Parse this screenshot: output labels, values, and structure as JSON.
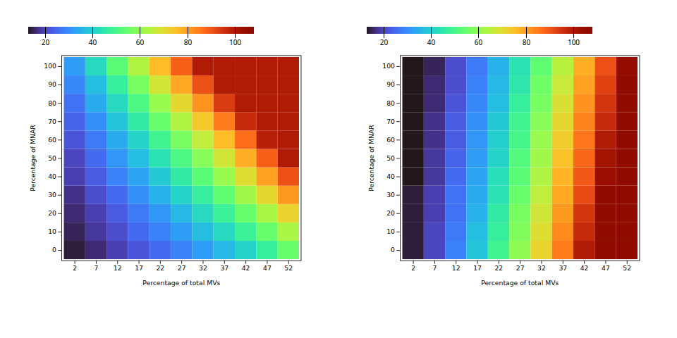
{
  "chart_data": [
    {
      "type": "heatmap",
      "x": [
        2,
        7,
        12,
        17,
        22,
        27,
        32,
        37,
        42,
        47,
        52
      ],
      "y": [
        0,
        10,
        20,
        30,
        40,
        50,
        60,
        70,
        80,
        90,
        100
      ],
      "xticks": [
        2,
        7,
        12,
        17,
        22,
        27,
        32,
        37,
        42,
        47,
        52
      ],
      "yticks": [
        0,
        10,
        20,
        30,
        40,
        50,
        60,
        70,
        80,
        90,
        100
      ],
      "xlabel": "Percentage of total MVs",
      "ylabel": "Percentage of MNAR",
      "colorbar_range": [
        13,
        108
      ],
      "colorbar_ticks": [
        20,
        40,
        60,
        80,
        100
      ],
      "values": [
        [
          14,
          16,
          19,
          22,
          25,
          28,
          32,
          36,
          41,
          47,
          55
        ],
        [
          15,
          18,
          21,
          25,
          28,
          32,
          37,
          42,
          48,
          55,
          63
        ],
        [
          16,
          19,
          23,
          27,
          31,
          36,
          42,
          48,
          55,
          63,
          72
        ],
        [
          17,
          21,
          25,
          30,
          35,
          41,
          47,
          54,
          62,
          71,
          81
        ],
        [
          19,
          23,
          28,
          33,
          39,
          46,
          53,
          61,
          70,
          80,
          91
        ],
        [
          20,
          25,
          31,
          37,
          44,
          51,
          59,
          68,
          78,
          89,
          100
        ],
        [
          22,
          27,
          34,
          41,
          49,
          57,
          66,
          76,
          87,
          99,
          100
        ],
        [
          24,
          30,
          38,
          46,
          55,
          64,
          74,
          85,
          97,
          100,
          100
        ],
        [
          26,
          34,
          42,
          51,
          61,
          71,
          82,
          94,
          100,
          100,
          100
        ],
        [
          29,
          37,
          47,
          57,
          68,
          79,
          91,
          100,
          100,
          100,
          100
        ],
        [
          32,
          42,
          53,
          64,
          76,
          89,
          100,
          100,
          100,
          100,
          100
        ]
      ]
    },
    {
      "type": "heatmap",
      "x": [
        2,
        7,
        12,
        17,
        22,
        27,
        32,
        37,
        42,
        47,
        52
      ],
      "y": [
        0,
        10,
        20,
        30,
        40,
        50,
        60,
        70,
        80,
        90,
        100
      ],
      "xticks": [
        2,
        7,
        12,
        17,
        22,
        27,
        32,
        37,
        42,
        47,
        52
      ],
      "yticks": [
        0,
        10,
        20,
        30,
        40,
        50,
        60,
        70,
        80,
        90,
        100
      ],
      "xlabel": "Percentage of total MVs",
      "ylabel": "Percentage of MNAR",
      "colorbar_range": [
        13,
        108
      ],
      "colorbar_ticks": [
        20,
        40,
        60,
        80,
        100
      ],
      "values": [
        [
          14,
          20,
          28,
          38,
          49,
          60,
          72,
          85,
          100,
          108,
          108
        ],
        [
          14,
          20,
          27,
          37,
          47,
          58,
          70,
          83,
          97,
          108,
          108
        ],
        [
          14,
          19,
          26,
          35,
          46,
          57,
          68,
          81,
          95,
          108,
          108
        ],
        [
          14,
          19,
          26,
          34,
          44,
          55,
          66,
          79,
          92,
          107,
          108
        ],
        [
          13,
          18,
          25,
          33,
          43,
          53,
          64,
          77,
          90,
          104,
          108
        ],
        [
          13,
          18,
          24,
          32,
          41,
          52,
          62,
          75,
          88,
          102,
          108
        ],
        [
          13,
          17,
          23,
          31,
          40,
          50,
          61,
          73,
          86,
          100,
          108
        ],
        [
          13,
          17,
          23,
          30,
          39,
          49,
          59,
          71,
          84,
          97,
          108
        ],
        [
          13,
          16,
          22,
          29,
          37,
          47,
          57,
          69,
          82,
          95,
          108
        ],
        [
          13,
          16,
          21,
          28,
          36,
          45,
          56,
          67,
          80,
          93,
          107
        ],
        [
          13,
          15,
          21,
          27,
          35,
          44,
          54,
          65,
          78,
          91,
          105
        ]
      ]
    }
  ]
}
